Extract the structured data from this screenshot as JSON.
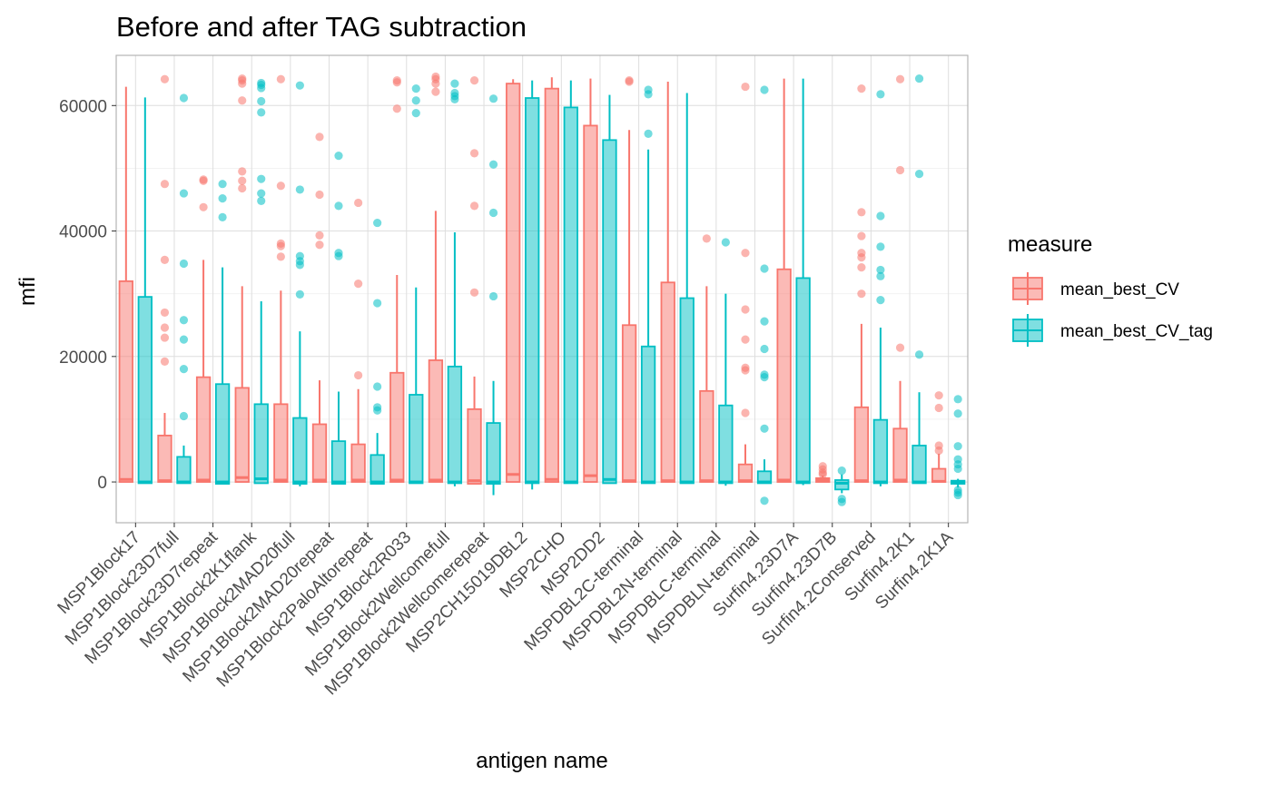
{
  "chart_data": {
    "type": "boxplot",
    "title": "Before and after TAG subtraction",
    "xlabel": "antigen name",
    "ylabel": "mfi",
    "ylim": [
      -6500,
      68000
    ],
    "yticks": [
      0,
      20000,
      40000,
      60000
    ],
    "ytick_labels": [
      "0",
      "20000",
      "40000",
      "60000"
    ],
    "grid": true,
    "legend_position": "right",
    "legend_title": "measure",
    "categories": [
      "MSP1Block17",
      "MSP1Block23D7full",
      "MSP1Block23D7repeat",
      "MSP1Block2K1flank",
      "MSP1Block2MAD20full",
      "MSP1Block2MAD20repeat",
      "MSP1Block2PaloAltorepeat",
      "MSP1Block2R033",
      "MSP1Block2Wellcomefull",
      "MSP1Block2Wellcomerepeat",
      "MSP2CH15019DBL2",
      "MSP2CHO",
      "MSP2DD2",
      "MSPDBL2C-terminal",
      "MSPDBL2N-terminal",
      "MSPDBLC-terminal",
      "MSPDBLN-terminal",
      "Surfin4.23D7A",
      "Surfin4.23D7B",
      "Surfin4.2Conserved",
      "Surfin4.2K1",
      "Surfin4.2K1A"
    ],
    "series": [
      {
        "name": "mean_best_CV",
        "color": "#F8766D",
        "fill": "#F8766D",
        "boxes": [
          {
            "lo": 0,
            "q1": 0,
            "med": 400,
            "q3": 32000,
            "hi": 63000,
            "out": []
          },
          {
            "lo": 0,
            "q1": 0,
            "med": 200,
            "q3": 7400,
            "hi": 11000,
            "out": [
              19200,
              23000,
              24600,
              27000,
              35400,
              47500,
              64200
            ]
          },
          {
            "lo": 0,
            "q1": 0,
            "med": 300,
            "q3": 16700,
            "hi": 35400,
            "out": [
              43800,
              48000,
              48200
            ]
          },
          {
            "lo": 0,
            "q1": 0,
            "med": 700,
            "q3": 15000,
            "hi": 31200,
            "out": [
              46800,
              48000,
              49500,
              60800,
              63500,
              64000,
              64300
            ]
          },
          {
            "lo": 0,
            "q1": 0,
            "med": 300,
            "q3": 12400,
            "hi": 30500,
            "out": [
              35900,
              37600,
              38000,
              47200,
              64200
            ]
          },
          {
            "lo": 0,
            "q1": 0,
            "med": 300,
            "q3": 9200,
            "hi": 16200,
            "out": [
              37800,
              39300,
              45800,
              55000
            ]
          },
          {
            "lo": 0,
            "q1": 0,
            "med": 300,
            "q3": 6000,
            "hi": 14800,
            "out": [
              17000,
              31600,
              44500
            ]
          },
          {
            "lo": 0,
            "q1": 0,
            "med": 300,
            "q3": 17400,
            "hi": 33000,
            "out": [
              59500,
              63700,
              64000
            ]
          },
          {
            "lo": 0,
            "q1": 0,
            "med": 300,
            "q3": 19400,
            "hi": 43200,
            "out": [
              62200,
              63500,
              64200,
              64600
            ]
          },
          {
            "lo": -300,
            "q1": -300,
            "med": 200,
            "q3": 11600,
            "hi": 16800,
            "out": [
              30200,
              44000,
              52400,
              64000
            ]
          },
          {
            "lo": 0,
            "q1": 0,
            "med": 1200,
            "q3": 63500,
            "hi": 64200,
            "out": []
          },
          {
            "lo": 0,
            "q1": 0,
            "med": 400,
            "q3": 62700,
            "hi": 64500,
            "out": []
          },
          {
            "lo": 0,
            "q1": 0,
            "med": 1000,
            "q3": 56800,
            "hi": 64300,
            "out": []
          },
          {
            "lo": 0,
            "q1": 0,
            "med": 200,
            "q3": 25000,
            "hi": 56100,
            "out": [
              63800,
              64000
            ]
          },
          {
            "lo": 0,
            "q1": 0,
            "med": 200,
            "q3": 31800,
            "hi": 63800,
            "out": []
          },
          {
            "lo": 0,
            "q1": 0,
            "med": 200,
            "q3": 14500,
            "hi": 31200,
            "out": [
              38800
            ]
          },
          {
            "lo": 0,
            "q1": 0,
            "med": 200,
            "q3": 2800,
            "hi": 6000,
            "out": [
              11000,
              17800,
              18200,
              22700,
              27500,
              36500,
              63000
            ]
          },
          {
            "lo": 0,
            "q1": 0,
            "med": 300,
            "q3": 33900,
            "hi": 64300,
            "out": []
          },
          {
            "lo": 0,
            "q1": 0,
            "med": 300,
            "q3": 600,
            "hi": 1000,
            "out": [
              1200,
              1500,
              2000,
              2500
            ]
          },
          {
            "lo": 0,
            "q1": 0,
            "med": 200,
            "q3": 11900,
            "hi": 25200,
            "out": [
              30000,
              34200,
              35800,
              36500,
              39200,
              43000,
              62700
            ]
          },
          {
            "lo": 0,
            "q1": 0,
            "med": 300,
            "q3": 8500,
            "hi": 16100,
            "out": [
              21400,
              49700,
              64200
            ]
          },
          {
            "lo": 0,
            "q1": 0,
            "med": 100,
            "q3": 2100,
            "hi": 4500,
            "out": [
              5000,
              5800,
              11800,
              13800
            ]
          }
        ]
      },
      {
        "name": "mean_best_CV_tag",
        "color": "#00BFC4",
        "fill": "#00BFC4",
        "boxes": [
          {
            "lo": -200,
            "q1": -200,
            "med": 0,
            "q3": 29500,
            "hi": 61300,
            "out": []
          },
          {
            "lo": -200,
            "q1": -200,
            "med": 0,
            "q3": 4000,
            "hi": 5800,
            "out": [
              10500,
              18000,
              22700,
              25800,
              34800,
              46000,
              61200
            ]
          },
          {
            "lo": -300,
            "q1": -300,
            "med": 0,
            "q3": 15600,
            "hi": 34200,
            "out": [
              42200,
              45200,
              47500
            ]
          },
          {
            "lo": -200,
            "q1": -200,
            "med": 500,
            "q3": 12400,
            "hi": 28800,
            "out": [
              44800,
              46000,
              48300,
              58900,
              60700,
              62800,
              63300,
              63600
            ]
          },
          {
            "lo": -700,
            "q1": -300,
            "med": 0,
            "q3": 10200,
            "hi": 24000,
            "out": [
              29900,
              34600,
              35200,
              36000,
              46600,
              63200
            ]
          },
          {
            "lo": -300,
            "q1": -300,
            "med": 0,
            "q3": 6500,
            "hi": 14400,
            "out": [
              36000,
              36500,
              44000,
              52000
            ]
          },
          {
            "lo": -300,
            "q1": -300,
            "med": 0,
            "q3": 4300,
            "hi": 7800,
            "out": [
              11400,
              11900,
              15200,
              28500,
              41300
            ]
          },
          {
            "lo": -200,
            "q1": -200,
            "med": 0,
            "q3": 13900,
            "hi": 31000,
            "out": [
              58800,
              60800,
              62700
            ]
          },
          {
            "lo": -700,
            "q1": -200,
            "med": 0,
            "q3": 18400,
            "hi": 39800,
            "out": [
              61000,
              61500,
              62000,
              63500
            ]
          },
          {
            "lo": -2100,
            "q1": -300,
            "med": 0,
            "q3": 9400,
            "hi": 16100,
            "out": [
              29600,
              42900,
              50600,
              61100
            ]
          },
          {
            "lo": -1200,
            "q1": -200,
            "med": 0,
            "q3": 61200,
            "hi": 64000,
            "out": []
          },
          {
            "lo": -200,
            "q1": -200,
            "med": 0,
            "q3": 59700,
            "hi": 64000,
            "out": []
          },
          {
            "lo": -200,
            "q1": -200,
            "med": 400,
            "q3": 54500,
            "hi": 61700,
            "out": []
          },
          {
            "lo": -200,
            "q1": -200,
            "med": 0,
            "q3": 21600,
            "hi": 53000,
            "out": [
              55500,
              61800,
              62500
            ]
          },
          {
            "lo": -200,
            "q1": -200,
            "med": 0,
            "q3": 29300,
            "hi": 62000,
            "out": []
          },
          {
            "lo": -600,
            "q1": -200,
            "med": 0,
            "q3": 12200,
            "hi": 30000,
            "out": [
              38200
            ]
          },
          {
            "lo": -200,
            "q1": -200,
            "med": 0,
            "q3": 1700,
            "hi": 3600,
            "out": [
              -3000,
              8500,
              16700,
              17100,
              21200,
              25600,
              34000,
              62500
            ]
          },
          {
            "lo": -500,
            "q1": -200,
            "med": 0,
            "q3": 32500,
            "hi": 64300,
            "out": []
          },
          {
            "lo": -1800,
            "q1": -1200,
            "med": -200,
            "q3": 300,
            "hi": 1200,
            "out": [
              -3200,
              -2700,
              1800
            ]
          },
          {
            "lo": -700,
            "q1": -200,
            "med": 0,
            "q3": 9900,
            "hi": 24600,
            "out": [
              29000,
              32800,
              33800,
              37500,
              42400,
              61800
            ]
          },
          {
            "lo": -200,
            "q1": -200,
            "med": 0,
            "q3": 5800,
            "hi": 14300,
            "out": [
              20300,
              49100,
              64300
            ]
          },
          {
            "lo": -900,
            "q1": -300,
            "med": 0,
            "q3": 200,
            "hi": 500,
            "out": [
              -2100,
              -1700,
              -1300,
              2100,
              2800,
              3600,
              5700,
              10900,
              13200
            ]
          }
        ]
      }
    ]
  }
}
